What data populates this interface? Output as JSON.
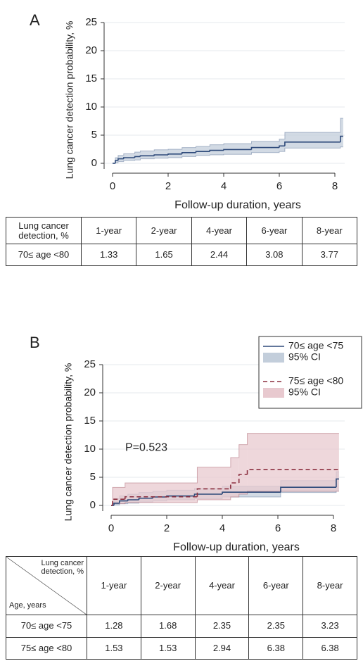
{
  "chart_data": [
    {
      "type": "step",
      "panel_label": "A",
      "ylabel": "Lung cancer detection probability, %",
      "xlabel": "Follow-up duration, years",
      "xlim": [
        0,
        8
      ],
      "xticks": [
        0,
        2,
        4,
        6,
        8
      ],
      "ylim": [
        0,
        25
      ],
      "yticks": [
        0,
        5,
        10,
        15,
        20,
        25
      ],
      "grid": true,
      "series": [
        {
          "color": "#2e4a7a",
          "ci_color": "#c3cedb",
          "dash": false,
          "x": [
            0,
            0.1,
            0.2,
            0.4,
            0.8,
            1.0,
            1.5,
            2.0,
            2.5,
            3.0,
            3.5,
            4.0,
            5.0,
            6.0,
            6.2,
            8.2,
            8.3
          ],
          "values": [
            0,
            0.5,
            0.8,
            1.0,
            1.2,
            1.33,
            1.5,
            1.65,
            1.9,
            2.1,
            2.3,
            2.44,
            2.8,
            3.08,
            3.77,
            4.8,
            4.8
          ],
          "lower": [
            0,
            0.1,
            0.3,
            0.5,
            0.6,
            0.8,
            0.9,
            1.0,
            1.2,
            1.4,
            1.5,
            1.6,
            1.9,
            2.1,
            2.7,
            2.9,
            2.9
          ],
          "upper": [
            0,
            1.0,
            1.4,
            1.7,
            2.0,
            2.2,
            2.4,
            2.5,
            2.8,
            3.0,
            3.3,
            3.5,
            3.9,
            4.3,
            5.5,
            8.0,
            8.0
          ]
        }
      ]
    },
    {
      "type": "step",
      "panel_label": "B",
      "ylabel": "Lung cancer detection probability, %",
      "xlabel": "Follow-up duration, years",
      "xlim": [
        0,
        8
      ],
      "xticks": [
        0,
        2,
        4,
        6,
        8
      ],
      "ylim": [
        0,
        25
      ],
      "yticks": [
        0,
        5,
        10,
        15,
        20,
        25
      ],
      "grid": true,
      "annotation": "P=0.523",
      "legend": "top-right",
      "series": [
        {
          "name": "70≤ age <75",
          "ci_name": "95% CI",
          "color": "#2e4a7a",
          "ci_color": "#c3cedb",
          "dash": false,
          "x": [
            0,
            0.1,
            0.3,
            0.6,
            1.0,
            1.5,
            2.0,
            3.0,
            4.0,
            6.1,
            8.1,
            8.2
          ],
          "values": [
            0,
            0.4,
            0.8,
            1.0,
            1.28,
            1.5,
            1.68,
            2.0,
            2.35,
            3.23,
            4.7,
            4.7
          ],
          "lower": [
            0,
            0.1,
            0.3,
            0.4,
            0.6,
            0.8,
            1.0,
            1.2,
            1.5,
            2.3,
            2.6,
            2.6
          ],
          "upper": [
            0,
            1.2,
            1.7,
            2.0,
            2.3,
            2.5,
            2.7,
            3.0,
            3.4,
            4.4,
            6.0,
            6.0
          ]
        },
        {
          "name": "75≤ age <80",
          "ci_name": "95% CI",
          "color": "#8b2f3f",
          "ci_color": "#e8c9cf",
          "dash": true,
          "x": [
            0,
            0.05,
            0.5,
            3.1,
            4.3,
            4.6,
            4.9,
            8.2
          ],
          "values": [
            0,
            1.1,
            1.53,
            2.94,
            4.0,
            5.5,
            6.38,
            6.38
          ],
          "lower": [
            0,
            0.3,
            0.5,
            1.0,
            1.5,
            2.0,
            2.5,
            2.5
          ],
          "upper": [
            0,
            3.2,
            4.0,
            6.8,
            8.5,
            10.8,
            12.8,
            12.8
          ]
        }
      ]
    }
  ],
  "tables": [
    {
      "header": [
        "Lung cancer detection, %",
        "1-year",
        "2-year",
        "4-year",
        "6-year",
        "8-year"
      ],
      "rows": [
        [
          "70≤ age <80",
          1.33,
          1.65,
          2.44,
          3.08,
          3.77
        ]
      ]
    },
    {
      "header": [
        "Lung cancer detection, %",
        "1-year",
        "2-year",
        "4-year",
        "6-year",
        "8-year"
      ],
      "corner_label": "Age, years",
      "rows": [
        [
          "70≤ age <75",
          1.28,
          1.68,
          2.35,
          2.35,
          3.23
        ],
        [
          "75≤ age <80",
          1.53,
          1.53,
          2.94,
          6.38,
          6.38
        ]
      ]
    }
  ]
}
